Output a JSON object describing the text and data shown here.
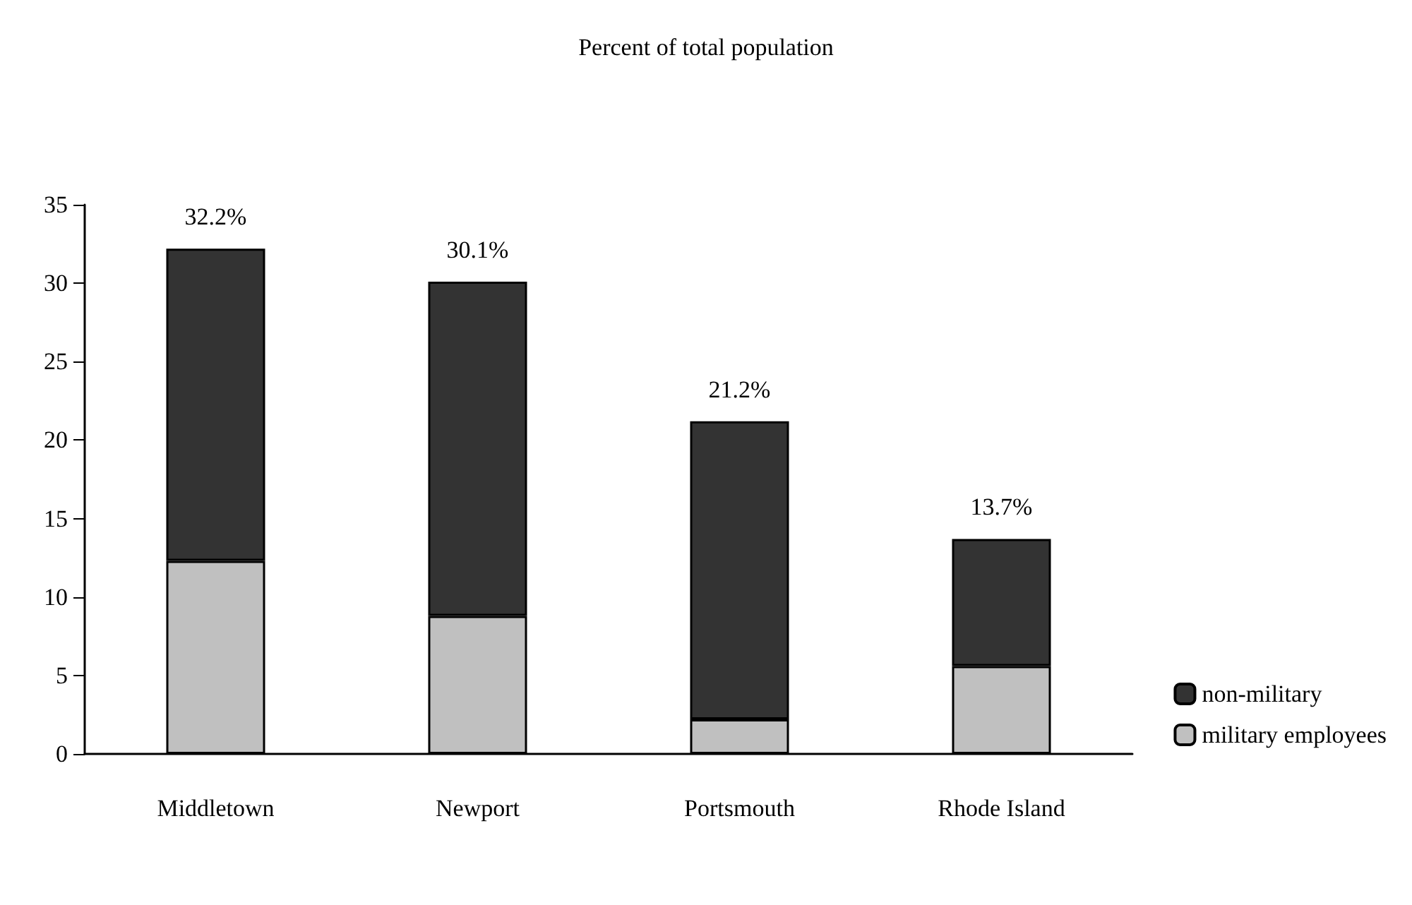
{
  "chart_data": {
    "type": "bar",
    "title": "Percent of total population",
    "categories": [
      "Middletown",
      "Newport",
      "Portsmouth",
      "Rhode Island"
    ],
    "stacked": true,
    "series": [
      {
        "name": "military employees",
        "color": "#c0c0c0",
        "values": [
          12.3,
          8.8,
          2.2,
          5.6
        ]
      },
      {
        "name": "non-military",
        "color": "#333333",
        "values": [
          19.9,
          21.3,
          19.0,
          8.1
        ]
      }
    ],
    "totals": [
      "32.2%",
      "30.1%",
      "21.2%",
      "13.7%"
    ],
    "ylim": [
      0,
      35
    ],
    "yticks": [
      0,
      5,
      10,
      15,
      20,
      25,
      30,
      35
    ],
    "grid": false,
    "legend": "right"
  }
}
